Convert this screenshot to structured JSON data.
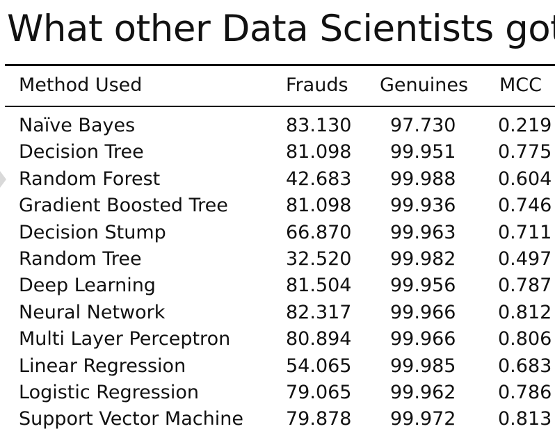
{
  "title": "What other Data Scientists got",
  "columns": {
    "method": "Method Used",
    "frauds": "Frauds",
    "genuines": "Genuines",
    "mcc": "MCC"
  },
  "rows": [
    {
      "method": "Naïve Bayes",
      "frauds": "83.130",
      "genuines": "97.730",
      "mcc": "0.219"
    },
    {
      "method": "Decision Tree",
      "frauds": "81.098",
      "genuines": "99.951",
      "mcc": "0.775"
    },
    {
      "method": "Random Forest",
      "frauds": "42.683",
      "genuines": "99.988",
      "mcc": "0.604"
    },
    {
      "method": "Gradient Boosted Tree",
      "frauds": "81.098",
      "genuines": "99.936",
      "mcc": "0.746"
    },
    {
      "method": "Decision Stump",
      "frauds": "66.870",
      "genuines": "99.963",
      "mcc": "0.711"
    },
    {
      "method": "Random Tree",
      "frauds": "32.520",
      "genuines": "99.982",
      "mcc": "0.497"
    },
    {
      "method": "Deep Learning",
      "frauds": "81.504",
      "genuines": "99.956",
      "mcc": "0.787"
    },
    {
      "method": "Neural Network",
      "frauds": "82.317",
      "genuines": "99.966",
      "mcc": "0.812"
    },
    {
      "method": "Multi Layer Perceptron",
      "frauds": "80.894",
      "genuines": "99.966",
      "mcc": "0.806"
    },
    {
      "method": "Linear Regression",
      "frauds": "54.065",
      "genuines": "99.985",
      "mcc": "0.683"
    },
    {
      "method": "Logistic Regression",
      "frauds": "79.065",
      "genuines": "99.962",
      "mcc": "0.786"
    },
    {
      "method": "Support Vector Machine",
      "frauds": "79.878",
      "genuines": "99.972",
      "mcc": "0.813"
    }
  ]
}
